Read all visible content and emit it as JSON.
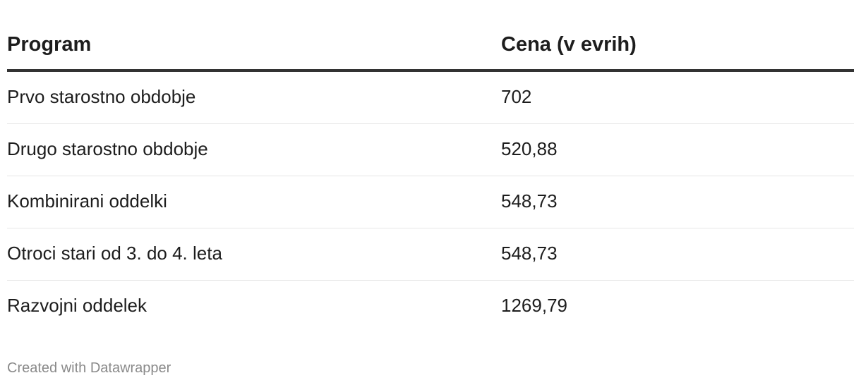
{
  "chart_data": {
    "type": "table",
    "columns": [
      "Program",
      "Cena (v evrih)"
    ],
    "rows": [
      {
        "program": "Prvo starostno obdobje",
        "price": "702"
      },
      {
        "program": "Drugo starostno obdobje",
        "price": "520,88"
      },
      {
        "program": "Kombinirani oddelki",
        "price": "548,73"
      },
      {
        "program": "Otroci stari od 3. do 4. leta",
        "price": "548,73"
      },
      {
        "program": "Razvojni oddelek",
        "price": "1269,79"
      }
    ]
  },
  "footer": {
    "credit": "Created with Datawrapper"
  }
}
